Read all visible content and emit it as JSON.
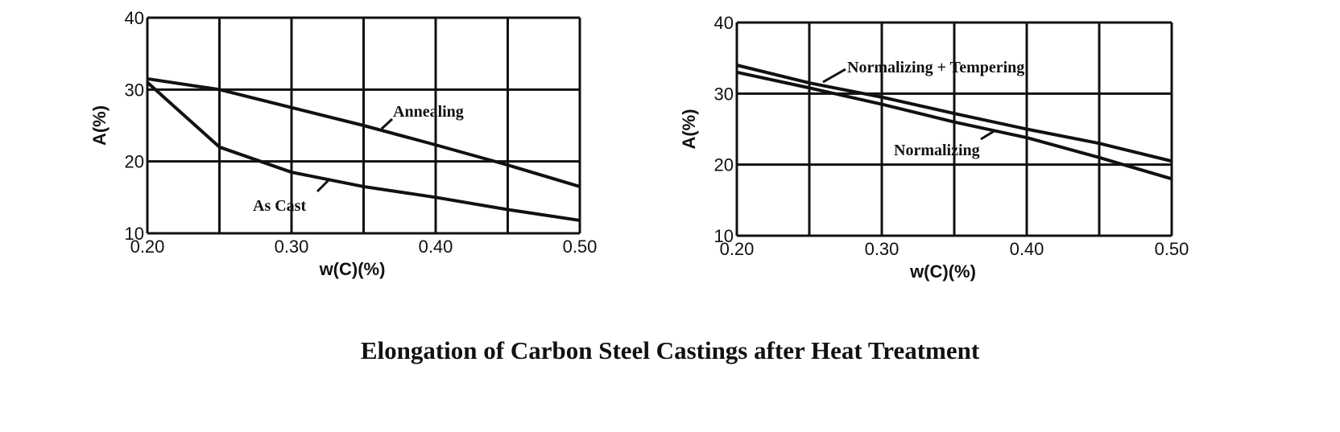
{
  "title": "Elongation of Carbon Steel Castings after Heat Treatment",
  "chart_data": [
    {
      "type": "line",
      "xlabel": "w(C)(%)",
      "ylabel": "A(%)",
      "xlim": [
        0.2,
        0.5
      ],
      "ylim": [
        10,
        40
      ],
      "xticks": [
        "0.20",
        "0.30",
        "0.40",
        "0.50"
      ],
      "yticks": [
        "10",
        "20",
        "30",
        "40"
      ],
      "grid": true,
      "x": [
        0.2,
        0.25,
        0.3,
        0.35,
        0.4,
        0.45,
        0.5
      ],
      "series": [
        {
          "name": "Annealing",
          "values": [
            31.5,
            30,
            27.5,
            25,
            22.3,
            19.5,
            16.5
          ]
        },
        {
          "name": "As Cast",
          "values": [
            31,
            22,
            18.5,
            16.5,
            15,
            13.3,
            11.8
          ]
        }
      ]
    },
    {
      "type": "line",
      "xlabel": "w(C)(%)",
      "ylabel": "A(%)",
      "xlim": [
        0.2,
        0.5
      ],
      "ylim": [
        10,
        40
      ],
      "xticks": [
        "0.20",
        "0.30",
        "0.40",
        "0.50"
      ],
      "yticks": [
        "10",
        "20",
        "30",
        "40"
      ],
      "grid": true,
      "x": [
        0.2,
        0.25,
        0.3,
        0.35,
        0.4,
        0.45,
        0.5
      ],
      "series": [
        {
          "name": "Normalizing + Tempering",
          "values": [
            34,
            31.5,
            29.5,
            27.2,
            25,
            23,
            20.5
          ]
        },
        {
          "name": "Normalizing",
          "values": [
            33,
            30.8,
            28.5,
            26,
            23.8,
            21,
            18
          ]
        }
      ]
    }
  ]
}
